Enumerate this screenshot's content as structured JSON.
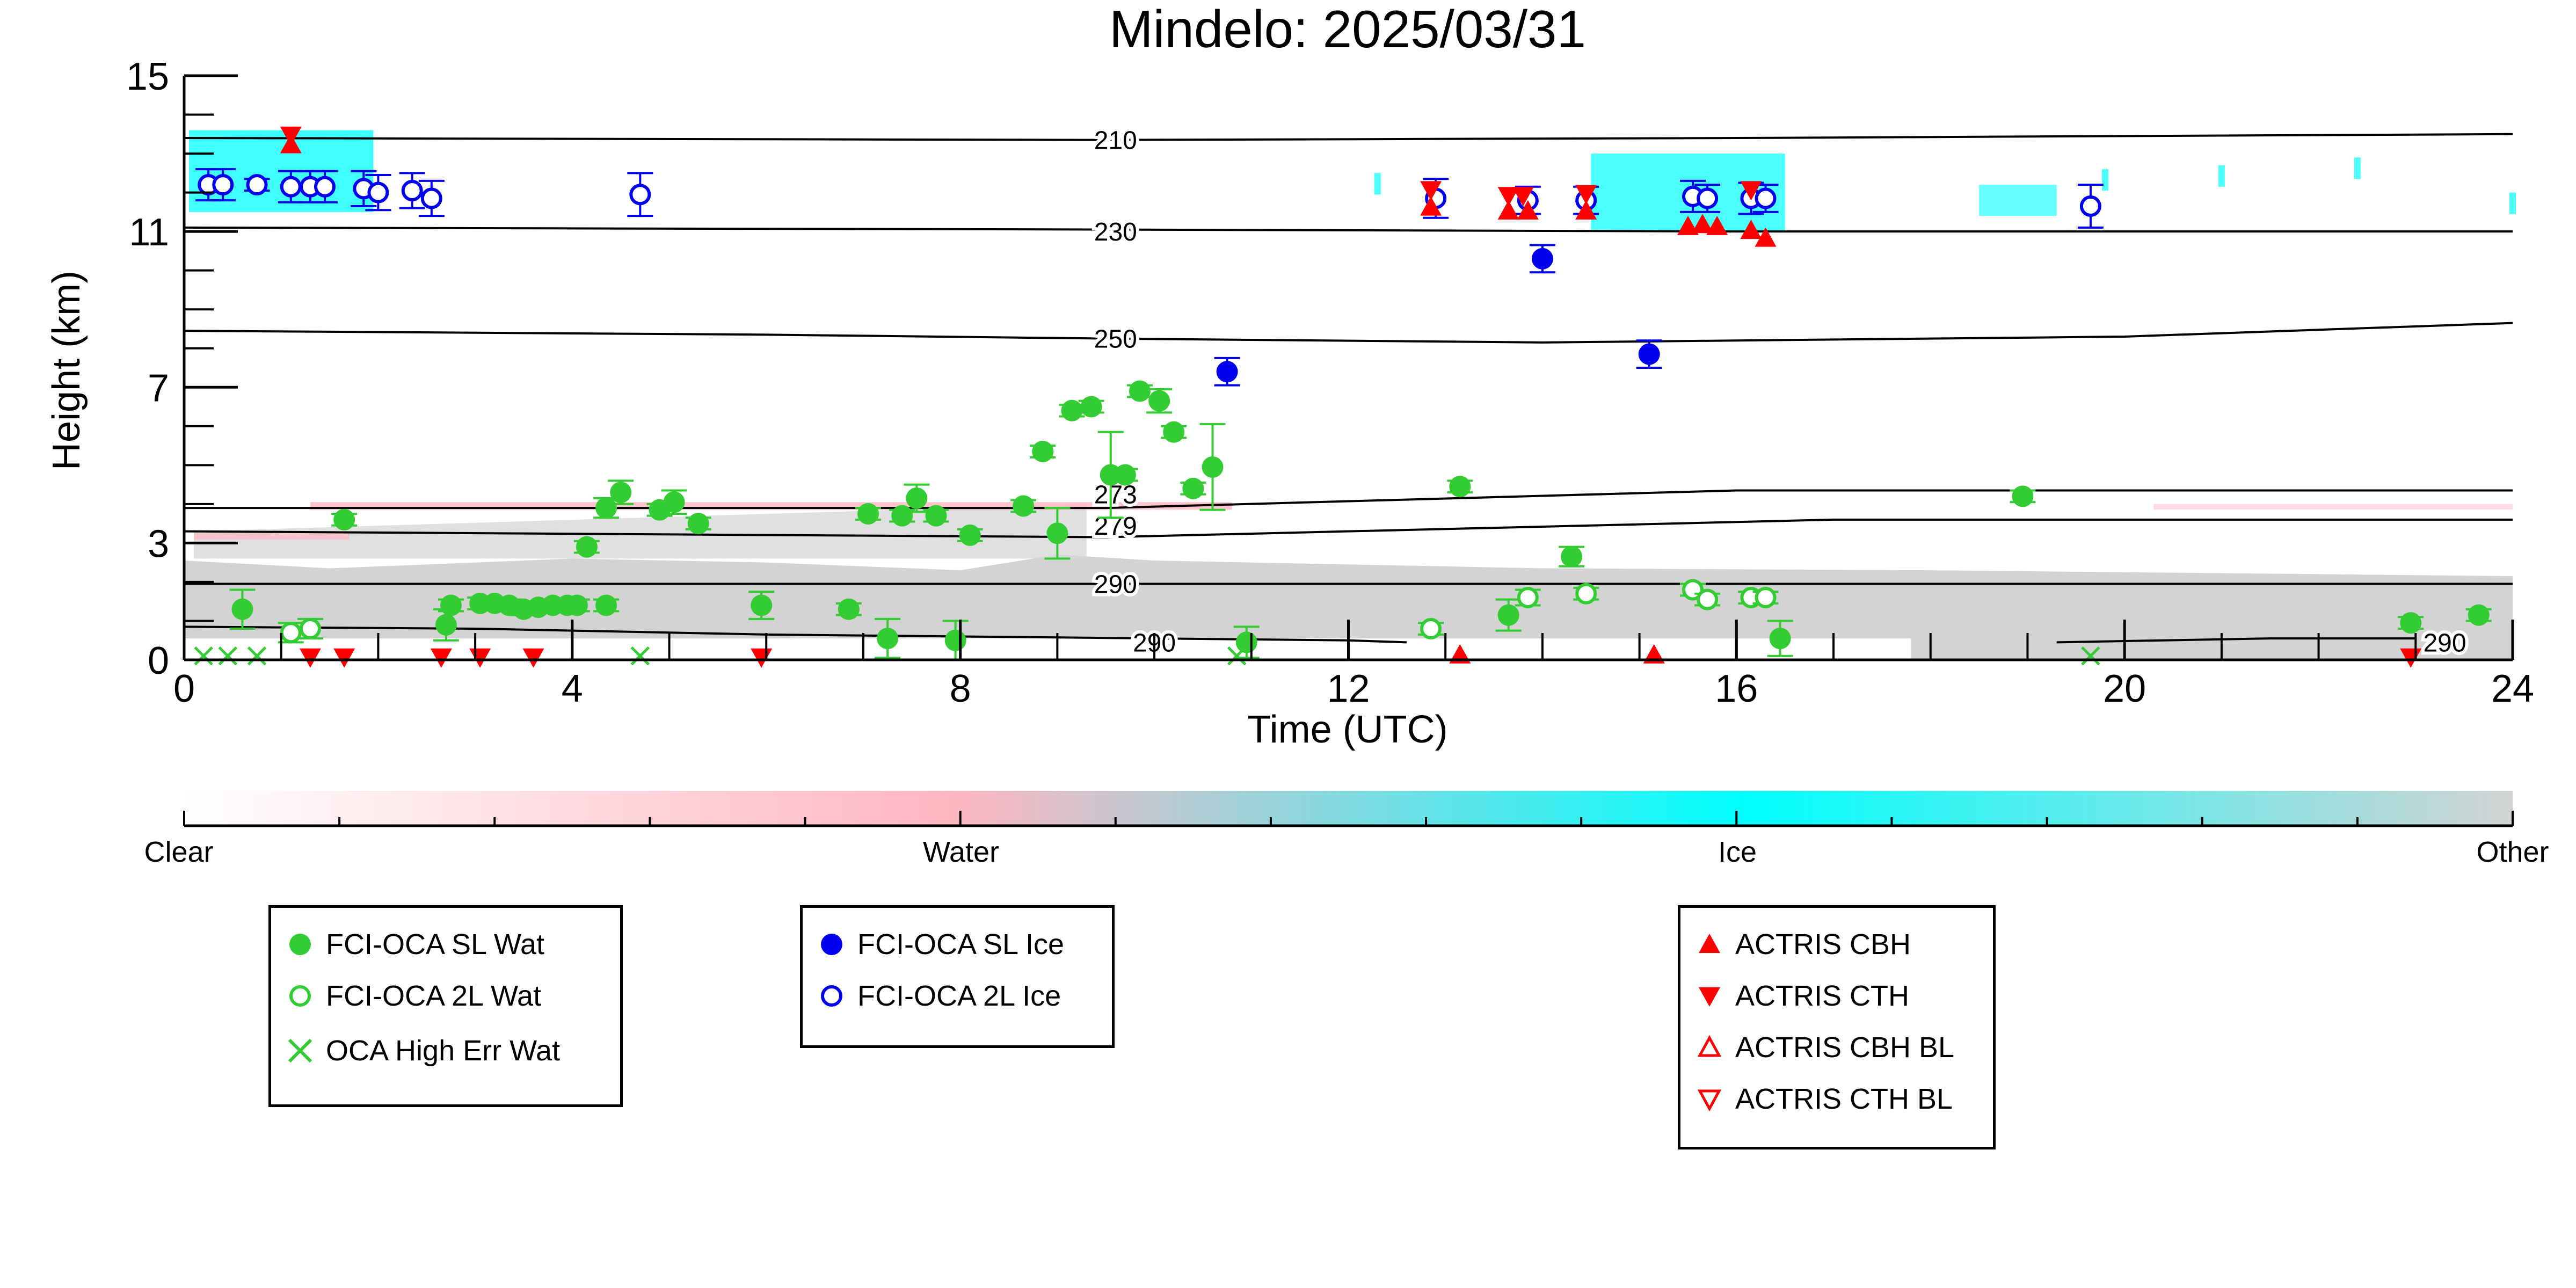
{
  "chart_data": {
    "type": "scatter",
    "title": "Mindelo: 2025/03/31",
    "xlabel": "Time (UTC)",
    "ylabel": "Height (km)",
    "xlim": [
      0,
      24
    ],
    "ylim": [
      0,
      15
    ],
    "x_ticks": [
      "0",
      "4",
      "8",
      "12",
      "16",
      "20",
      "24"
    ],
    "y_ticks": [
      "0",
      "3",
      "7",
      "11",
      "15"
    ],
    "x_tick_values": [
      0,
      4,
      8,
      12,
      16,
      20,
      24
    ],
    "y_tick_values": [
      0,
      3,
      7,
      11,
      15
    ],
    "grid": false,
    "background": "cloud target classification (Clear / Water / Ice / Other)",
    "colorbar": {
      "labels": [
        "Clear",
        "Water",
        "Ice",
        "Other"
      ],
      "colors": [
        "#ffffff",
        "#ffb6c1",
        "#00ffff",
        "#d3d3d3"
      ]
    },
    "isotherms": [
      {
        "label": "210",
        "heights": [
          [
            0,
            13.4
          ],
          [
            9.5,
            13.35
          ],
          [
            16,
            13.4
          ],
          [
            24,
            13.5
          ]
        ]
      },
      {
        "label": "230",
        "heights": [
          [
            0,
            11.1
          ],
          [
            9.5,
            11.05
          ],
          [
            16,
            11.0
          ],
          [
            24,
            11.0
          ]
        ]
      },
      {
        "label": "250",
        "heights": [
          [
            0,
            8.45
          ],
          [
            6,
            8.35
          ],
          [
            9.5,
            8.25
          ],
          [
            14,
            8.15
          ],
          [
            20,
            8.3
          ],
          [
            24,
            8.65
          ]
        ]
      },
      {
        "label": "273",
        "heights": [
          [
            0,
            3.9
          ],
          [
            9.5,
            3.9
          ],
          [
            16,
            4.35
          ],
          [
            24,
            4.35
          ]
        ]
      },
      {
        "label": "279",
        "heights": [
          [
            0,
            3.3
          ],
          [
            9.5,
            3.15
          ],
          [
            17,
            3.6
          ],
          [
            24,
            3.6
          ]
        ]
      },
      {
        "label": "290",
        "heights": [
          [
            0,
            1.95
          ],
          [
            9.5,
            1.95
          ],
          [
            16,
            1.95
          ],
          [
            24,
            1.95
          ]
        ]
      },
      {
        "label": "290",
        "heights": [
          [
            0,
            0.85
          ],
          [
            3,
            0.8
          ],
          [
            6,
            0.65
          ],
          [
            10,
            0.55
          ],
          [
            12,
            0.5
          ],
          [
            12.6,
            0.45
          ]
        ]
      },
      {
        "label": "290",
        "heights": [
          [
            19.3,
            0.45
          ],
          [
            21.5,
            0.55
          ],
          [
            23,
            0.55
          ]
        ]
      }
    ],
    "isotherm_label_positions": [
      {
        "label": "210",
        "x": 9.6,
        "y": 13.35
      },
      {
        "label": "230",
        "x": 9.6,
        "y": 11.0
      },
      {
        "label": "250",
        "x": 9.6,
        "y": 8.25
      },
      {
        "label": "273",
        "x": 9.6,
        "y": 4.25
      },
      {
        "label": "279",
        "x": 9.6,
        "y": 3.45
      },
      {
        "label": "290",
        "x": 9.6,
        "y": 1.95
      },
      {
        "label": "290",
        "x": 10.0,
        "y": 0.45
      },
      {
        "label": "290",
        "x": 23.3,
        "y": 0.45
      }
    ],
    "series": [
      {
        "name": "FCI-OCA SL Wat",
        "color": "#33cc33",
        "marker": "filled-circle",
        "points": [
          {
            "x": 0.6,
            "y": 1.3,
            "err": 0.5
          },
          {
            "x": 1.65,
            "y": 3.6,
            "err": 0.15
          },
          {
            "x": 2.7,
            "y": 0.9,
            "err": 0.4
          },
          {
            "x": 2.75,
            "y": 1.4,
            "err": 0.15
          },
          {
            "x": 3.05,
            "y": 1.45,
            "err": 0.15
          },
          {
            "x": 3.2,
            "y": 1.45,
            "err": 0.15
          },
          {
            "x": 3.35,
            "y": 1.4,
            "err": 0.15
          },
          {
            "x": 3.5,
            "y": 1.3,
            "err": 0.15
          },
          {
            "x": 3.65,
            "y": 1.35,
            "err": 0.15
          },
          {
            "x": 3.8,
            "y": 1.4,
            "err": 0.15
          },
          {
            "x": 3.95,
            "y": 1.4,
            "err": 0.15
          },
          {
            "x": 4.05,
            "y": 1.4,
            "err": 0.15
          },
          {
            "x": 4.15,
            "y": 2.9,
            "err": 0.15
          },
          {
            "x": 4.35,
            "y": 1.4,
            "err": 0.15
          },
          {
            "x": 4.5,
            "y": 4.3,
            "err": 0.3
          },
          {
            "x": 4.35,
            "y": 3.9,
            "err": 0.25
          },
          {
            "x": 4.9,
            "y": 3.85,
            "err": 0.15
          },
          {
            "x": 5.05,
            "y": 4.05,
            "err": 0.3
          },
          {
            "x": 5.3,
            "y": 3.5,
            "err": 0.15
          },
          {
            "x": 5.95,
            "y": 1.4,
            "err": 0.35
          },
          {
            "x": 6.85,
            "y": 1.3,
            "err": 0.15
          },
          {
            "x": 7.05,
            "y": 3.75,
            "err": 0.15
          },
          {
            "x": 7.25,
            "y": 0.55,
            "err": 0.5
          },
          {
            "x": 7.4,
            "y": 3.7,
            "err": 0.15
          },
          {
            "x": 7.55,
            "y": 4.15,
            "err": 0.35
          },
          {
            "x": 7.75,
            "y": 3.7,
            "err": 0.15
          },
          {
            "x": 7.95,
            "y": 0.5,
            "err": 0.5
          },
          {
            "x": 8.1,
            "y": 3.2,
            "err": 0.15
          },
          {
            "x": 8.65,
            "y": 3.95,
            "err": 0.15
          },
          {
            "x": 8.85,
            "y": 5.35,
            "err": 0.15
          },
          {
            "x": 9.0,
            "y": 3.25,
            "err": 0.65
          },
          {
            "x": 9.15,
            "y": 6.4,
            "err": 0.15
          },
          {
            "x": 9.35,
            "y": 6.5,
            "err": 0.15
          },
          {
            "x": 9.55,
            "y": 4.75,
            "err": 1.1
          },
          {
            "x": 9.7,
            "y": 4.75,
            "err": 0.15
          },
          {
            "x": 9.85,
            "y": 6.9,
            "err": 0.15
          },
          {
            "x": 10.05,
            "y": 6.65,
            "err": 0.3
          },
          {
            "x": 10.2,
            "y": 5.85,
            "err": 0.15
          },
          {
            "x": 10.4,
            "y": 4.4,
            "err": 0.15
          },
          {
            "x": 10.6,
            "y": 4.95,
            "err": 1.1
          },
          {
            "x": 10.95,
            "y": 0.45,
            "err": 0.4
          },
          {
            "x": 13.15,
            "y": 4.45,
            "err": 0.15
          },
          {
            "x": 13.65,
            "y": 1.15,
            "err": 0.4
          },
          {
            "x": 14.3,
            "y": 2.65,
            "err": 0.25
          },
          {
            "x": 16.45,
            "y": 0.55,
            "err": 0.45
          },
          {
            "x": 18.95,
            "y": 4.2,
            "err": 0.15
          },
          {
            "x": 22.95,
            "y": 0.95,
            "err": 0.15
          },
          {
            "x": 23.65,
            "y": 1.15,
            "err": 0.15
          }
        ]
      },
      {
        "name": "FCI-OCA 2L Wat",
        "color": "#33cc33",
        "marker": "open-circle",
        "points": [
          {
            "x": 1.1,
            "y": 0.7,
            "err": 0.25
          },
          {
            "x": 1.3,
            "y": 0.8,
            "err": 0.25
          },
          {
            "x": 12.85,
            "y": 0.8,
            "err": 0.15
          },
          {
            "x": 13.85,
            "y": 1.6,
            "err": 0.2
          },
          {
            "x": 14.45,
            "y": 1.7,
            "err": 0.15
          },
          {
            "x": 15.55,
            "y": 1.8,
            "err": 0.15
          },
          {
            "x": 15.7,
            "y": 1.55,
            "err": 0.15
          },
          {
            "x": 16.15,
            "y": 1.6,
            "err": 0.15
          },
          {
            "x": 16.3,
            "y": 1.6,
            "err": 0.15
          }
        ]
      },
      {
        "name": "OCA High Err Wat",
        "color": "#33cc33",
        "marker": "x",
        "points": [
          {
            "x": 0.2,
            "y": 0.1
          },
          {
            "x": 0.45,
            "y": 0.1
          },
          {
            "x": 0.75,
            "y": 0.1
          },
          {
            "x": 4.7,
            "y": 0.1
          },
          {
            "x": 10.85,
            "y": 0.1
          },
          {
            "x": 19.65,
            "y": 0.1
          }
        ]
      },
      {
        "name": "FCI-OCA SL Ice",
        "color": "#0000ee",
        "marker": "filled-circle",
        "points": [
          {
            "x": 10.75,
            "y": 7.4,
            "err": 0.35
          },
          {
            "x": 14.0,
            "y": 10.3,
            "err": 0.35
          },
          {
            "x": 15.1,
            "y": 7.85,
            "err": 0.35
          }
        ]
      },
      {
        "name": "FCI-OCA 2L Ice",
        "color": "#0000ee",
        "marker": "open-circle",
        "points": [
          {
            "x": 0.25,
            "y": 12.2,
            "err": 0.4
          },
          {
            "x": 0.4,
            "y": 12.2,
            "err": 0.4
          },
          {
            "x": 0.75,
            "y": 12.2,
            "err": 0.15
          },
          {
            "x": 1.1,
            "y": 12.15,
            "err": 0.4
          },
          {
            "x": 1.3,
            "y": 12.15,
            "err": 0.4
          },
          {
            "x": 1.45,
            "y": 12.15,
            "err": 0.4
          },
          {
            "x": 1.85,
            "y": 12.1,
            "err": 0.45
          },
          {
            "x": 2.0,
            "y": 12.0,
            "err": 0.45
          },
          {
            "x": 2.35,
            "y": 12.05,
            "err": 0.45
          },
          {
            "x": 2.55,
            "y": 11.85,
            "err": 0.45
          },
          {
            "x": 4.7,
            "y": 11.95,
            "err": 0.55
          },
          {
            "x": 12.9,
            "y": 11.85,
            "err": 0.5
          },
          {
            "x": 13.85,
            "y": 11.8,
            "err": 0.35
          },
          {
            "x": 14.45,
            "y": 11.8,
            "err": 0.35
          },
          {
            "x": 15.55,
            "y": 11.9,
            "err": 0.4
          },
          {
            "x": 15.7,
            "y": 11.85,
            "err": 0.35
          },
          {
            "x": 16.15,
            "y": 11.85,
            "err": 0.4
          },
          {
            "x": 16.3,
            "y": 11.85,
            "err": 0.35
          },
          {
            "x": 19.65,
            "y": 11.65,
            "err": 0.55
          }
        ]
      },
      {
        "name": "ACTRIS CBH",
        "color": "#ff0000",
        "marker": "triangle-up",
        "points": [
          {
            "x": 1.1,
            "y": 13.2
          },
          {
            "x": 12.85,
            "y": 11.6
          },
          {
            "x": 13.65,
            "y": 11.5
          },
          {
            "x": 13.85,
            "y": 11.5
          },
          {
            "x": 14.45,
            "y": 11.5
          },
          {
            "x": 15.5,
            "y": 11.1
          },
          {
            "x": 15.65,
            "y": 11.15
          },
          {
            "x": 15.8,
            "y": 11.1
          },
          {
            "x": 16.15,
            "y": 11.0
          },
          {
            "x": 16.3,
            "y": 10.8
          },
          {
            "x": 13.15,
            "y": 0.1
          },
          {
            "x": 15.15,
            "y": 0.1
          }
        ]
      },
      {
        "name": "ACTRIS CTH",
        "color": "#ff0000",
        "marker": "triangle-down",
        "points": [
          {
            "x": 1.1,
            "y": 13.5
          },
          {
            "x": 12.85,
            "y": 12.1
          },
          {
            "x": 13.65,
            "y": 11.95
          },
          {
            "x": 13.8,
            "y": 11.95
          },
          {
            "x": 14.45,
            "y": 12.0
          },
          {
            "x": 16.15,
            "y": 12.1
          },
          {
            "x": 1.3,
            "y": 0.1
          },
          {
            "x": 1.65,
            "y": 0.1
          },
          {
            "x": 2.65,
            "y": 0.1
          },
          {
            "x": 3.05,
            "y": 0.1
          },
          {
            "x": 3.6,
            "y": 0.1
          },
          {
            "x": 5.95,
            "y": 0.1
          },
          {
            "x": 22.95,
            "y": 0.1
          }
        ]
      },
      {
        "name": "ACTRIS CBH BL",
        "color": "#ff0000",
        "marker": "open-triangle-up",
        "points": []
      },
      {
        "name": "ACTRIS CTH BL",
        "color": "#ff0000",
        "marker": "open-triangle-down",
        "points": []
      }
    ],
    "legend_groups": [
      [
        "FCI-OCA SL Wat",
        "FCI-OCA 2L Wat",
        "OCA High Err Wat"
      ],
      [
        "FCI-OCA SL Ice",
        "FCI-OCA 2L Ice"
      ],
      [
        "ACTRIS CBH",
        "ACTRIS CTH",
        "ACTRIS CBH BL",
        "ACTRIS CTH BL"
      ]
    ]
  }
}
